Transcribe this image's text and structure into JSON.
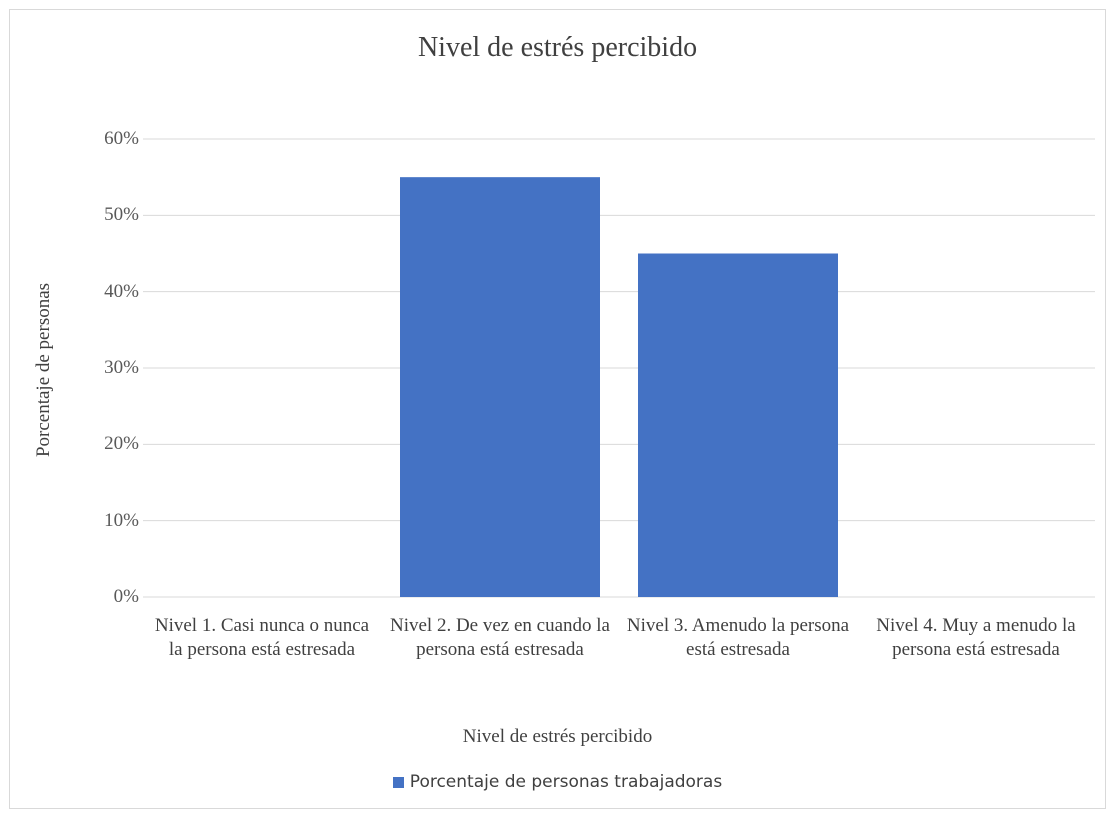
{
  "chart_data": {
    "type": "bar",
    "title": "Nivel de estrés percibido",
    "xlabel": "Nivel de estrés percibido",
    "ylabel": "Porcentaje de personas",
    "categories": [
      "Nivel 1. Casi nunca o nunca la persona está estresada",
      "Nivel 2. De vez en cuando la persona está estresada",
      "Nivel 3. Amenudo la persona está estresada",
      "Nivel 4. Muy a menudo la persona está estresada"
    ],
    "series": [
      {
        "name": "Porcentaje de personas trabajadoras",
        "values": [
          0,
          0.55,
          0.45,
          0
        ],
        "color": "#4472c4"
      }
    ],
    "ylim": [
      0,
      0.6
    ],
    "yticks": [
      "0%",
      "10%",
      "20%",
      "30%",
      "40%",
      "50%",
      "60%"
    ],
    "grid": true,
    "legend": "bottom"
  }
}
